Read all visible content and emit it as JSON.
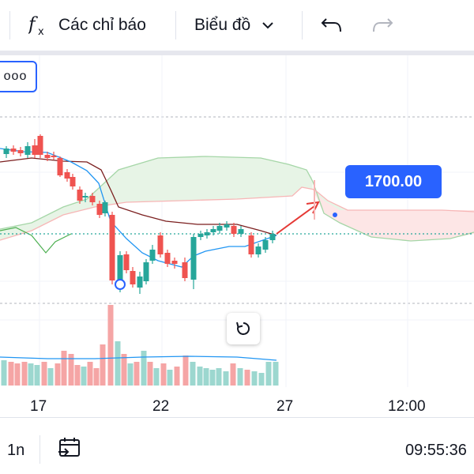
{
  "toolbar": {
    "indicators_label": "Các chỉ báo",
    "chart_type_label": "Biểu đồ",
    "fx_icon": "fx-icon",
    "undo_icon": "undo-icon",
    "redo_icon": "redo-icon"
  },
  "chart": {
    "more_button_label": "ooo",
    "price_tag": "1700.00",
    "x_ticks": [
      "17",
      "22",
      "27",
      "12:00"
    ],
    "colors": {
      "up": "#26a69a",
      "down": "#ef5350",
      "ma_blue": "#2196f3",
      "ma_brown": "#7b1f1f",
      "cloud_green": "#a5d6a7",
      "cloud_red": "#f7b6b6",
      "lagging": "#4caf50",
      "arrow": "#e53935"
    }
  },
  "bottom": {
    "interval_label": "1n",
    "time": "09:55:36",
    "calendar_icon": "calendar-goto-icon"
  }
}
